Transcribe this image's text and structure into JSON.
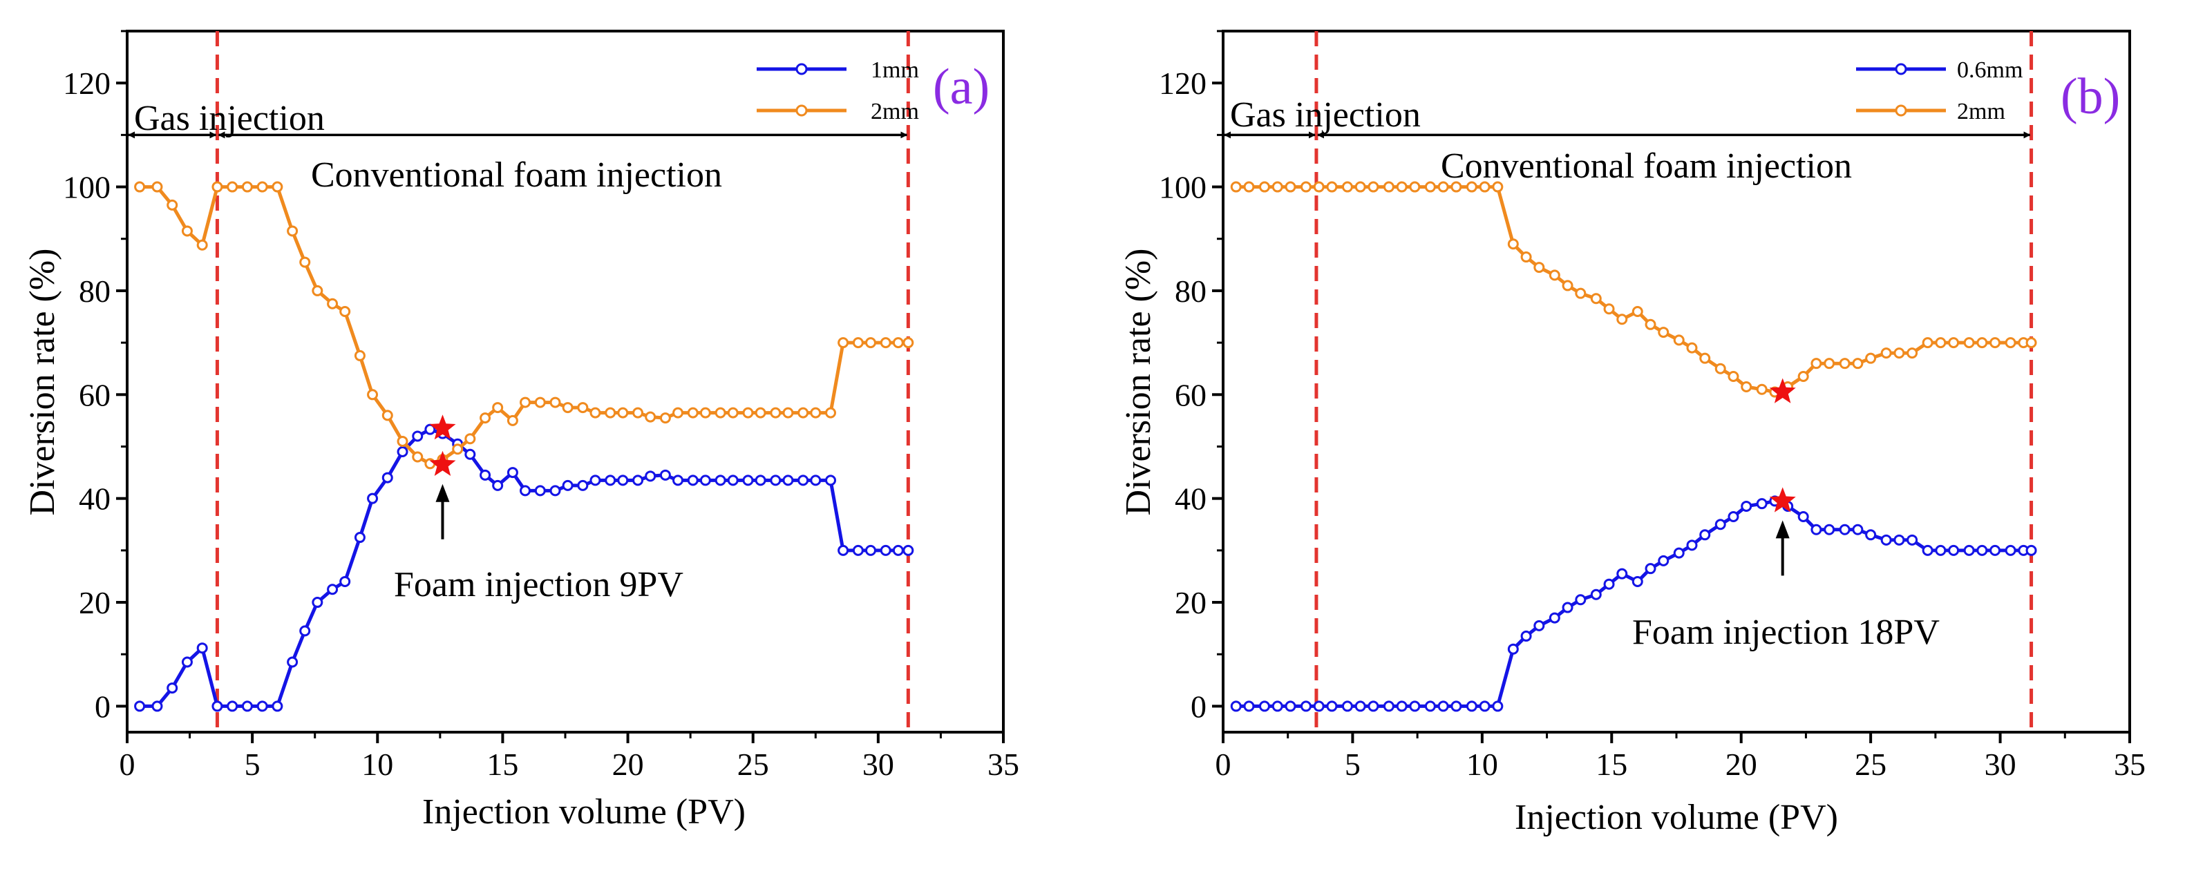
{
  "colors": {
    "series_a": "#1414e6",
    "series_b": "#f08a1e",
    "divider": "#e3342f",
    "panel_label": "#8a2be2",
    "star": "#ee1111"
  },
  "chart_data": [
    {
      "type": "line",
      "panel_label": "(a)",
      "xlabel": "Injection volume (PV)",
      "ylabel": "Diversion rate (%)",
      "xlim": [
        0,
        35
      ],
      "ylim": [
        -5,
        130
      ],
      "xticks": [
        "0",
        "5",
        "10",
        "15",
        "20",
        "25",
        "30",
        "35"
      ],
      "yticks": [
        "0",
        "20",
        "40",
        "60",
        "80",
        "100",
        "120"
      ],
      "vlines": [
        3.6,
        31.2
      ],
      "annotations": {
        "gas": "Gas injection",
        "conventional": "Conventional foam injection",
        "foam": "Foam injection 9PV"
      },
      "gas_arrow_x": [
        0,
        3.6
      ],
      "conv_arrow_x": [
        3.6,
        31.2
      ],
      "arrow_y": 110,
      "pointer_x": 12.6,
      "stars": [
        {
          "x": 12.6,
          "y": 53.5
        },
        {
          "x": 12.6,
          "y": 46.5
        }
      ],
      "series": [
        {
          "name": "1mm",
          "x": [
            0.5,
            1.2,
            1.8,
            2.4,
            3.0,
            3.6,
            4.2,
            4.8,
            5.4,
            6.0,
            6.6,
            7.1,
            7.6,
            8.2,
            8.7,
            9.3,
            9.8,
            10.4,
            11.0,
            11.6,
            12.1,
            12.6,
            13.2,
            13.7,
            14.3,
            14.8,
            15.4,
            15.9,
            16.5,
            17.1,
            17.6,
            18.2,
            18.7,
            19.3,
            19.8,
            20.4,
            20.9,
            21.5,
            22.0,
            22.6,
            23.1,
            23.7,
            24.2,
            24.8,
            25.3,
            25.9,
            26.4,
            27.0,
            27.5,
            28.1,
            28.6,
            29.2,
            29.7,
            30.3,
            30.8,
            31.2
          ],
          "values": [
            0,
            0,
            3.5,
            8.5,
            11.2,
            0,
            0,
            0,
            0,
            0,
            8.5,
            14.5,
            20,
            22.5,
            24,
            32.5,
            40,
            44,
            49,
            52,
            53.3,
            52.5,
            50.5,
            48.5,
            44.5,
            42.5,
            45,
            41.5,
            41.5,
            41.5,
            42.5,
            42.5,
            43.5,
            43.5,
            43.5,
            43.5,
            44.3,
            44.5,
            43.5,
            43.5,
            43.5,
            43.5,
            43.5,
            43.5,
            43.5,
            43.5,
            43.5,
            43.5,
            43.5,
            43.5,
            30,
            30,
            30,
            30,
            30,
            30
          ]
        },
        {
          "name": "2mm",
          "x": [
            0.5,
            1.2,
            1.8,
            2.4,
            3.0,
            3.6,
            4.2,
            4.8,
            5.4,
            6.0,
            6.6,
            7.1,
            7.6,
            8.2,
            8.7,
            9.3,
            9.8,
            10.4,
            11.0,
            11.6,
            12.1,
            12.6,
            13.2,
            13.7,
            14.3,
            14.8,
            15.4,
            15.9,
            16.5,
            17.1,
            17.6,
            18.2,
            18.7,
            19.3,
            19.8,
            20.4,
            20.9,
            21.5,
            22.0,
            22.6,
            23.1,
            23.7,
            24.2,
            24.8,
            25.3,
            25.9,
            26.4,
            27.0,
            27.5,
            28.1,
            28.6,
            29.2,
            29.7,
            30.3,
            30.8,
            31.2
          ],
          "values": [
            100,
            100,
            96.5,
            91.5,
            88.8,
            100,
            100,
            100,
            100,
            100,
            91.5,
            85.5,
            80,
            77.5,
            76,
            67.5,
            60,
            56,
            51,
            48,
            46.7,
            47.5,
            49.5,
            51.5,
            55.5,
            57.5,
            55,
            58.5,
            58.5,
            58.5,
            57.5,
            57.5,
            56.5,
            56.5,
            56.5,
            56.5,
            55.7,
            55.5,
            56.5,
            56.5,
            56.5,
            56.5,
            56.5,
            56.5,
            56.5,
            56.5,
            56.5,
            56.5,
            56.5,
            56.5,
            70,
            70,
            70,
            70,
            70,
            70
          ]
        }
      ]
    },
    {
      "type": "line",
      "panel_label": "(b)",
      "xlabel": "Injection volume (PV)",
      "ylabel": "Diversion rate (%)",
      "xlim": [
        0,
        35
      ],
      "ylim": [
        -5,
        130
      ],
      "xticks": [
        "0",
        "5",
        "10",
        "15",
        "20",
        "25",
        "30",
        "35"
      ],
      "yticks": [
        "0",
        "20",
        "40",
        "60",
        "80",
        "100",
        "120"
      ],
      "vlines": [
        3.6,
        31.2
      ],
      "annotations": {
        "gas": "Gas injection",
        "conventional": "Conventional foam injection",
        "foam": "Foam injection 18PV"
      },
      "gas_arrow_x": [
        0,
        3.6
      ],
      "conv_arrow_x": [
        3.6,
        31.2
      ],
      "arrow_y": 110,
      "pointer_x": 21.6,
      "stars": [
        {
          "x": 21.6,
          "y": 39.5
        },
        {
          "x": 21.6,
          "y": 60.5
        }
      ],
      "series": [
        {
          "name": "0.6mm",
          "x": [
            0.5,
            1.0,
            1.6,
            2.1,
            2.6,
            3.2,
            3.7,
            4.2,
            4.8,
            5.3,
            5.8,
            6.4,
            6.9,
            7.4,
            8.0,
            8.5,
            9.0,
            9.6,
            10.1,
            10.6,
            11.2,
            11.7,
            12.2,
            12.8,
            13.3,
            13.8,
            14.4,
            14.9,
            15.4,
            16.0,
            16.5,
            17.0,
            17.6,
            18.1,
            18.6,
            19.2,
            19.7,
            20.2,
            20.8,
            21.3,
            21.8,
            22.4,
            22.9,
            23.4,
            24.0,
            24.5,
            25.0,
            25.6,
            26.1,
            26.6,
            27.2,
            27.7,
            28.2,
            28.8,
            29.3,
            29.8,
            30.4,
            30.9,
            31.2
          ],
          "values": [
            0,
            0,
            0,
            0,
            0,
            0,
            0,
            0,
            0,
            0,
            0,
            0,
            0,
            0,
            0,
            0,
            0,
            0,
            0,
            0,
            11,
            13.5,
            15.5,
            17,
            19,
            20.5,
            21.5,
            23.5,
            25.5,
            24,
            26.5,
            28,
            29.5,
            31,
            33,
            35,
            36.5,
            38.5,
            39,
            39.5,
            38.5,
            36.5,
            34,
            34,
            34,
            34,
            33,
            32,
            32,
            32,
            30,
            30,
            30,
            30,
            30,
            30,
            30,
            30,
            30
          ]
        },
        {
          "name": "2mm",
          "x": [
            0.5,
            1.0,
            1.6,
            2.1,
            2.6,
            3.2,
            3.7,
            4.2,
            4.8,
            5.3,
            5.8,
            6.4,
            6.9,
            7.4,
            8.0,
            8.5,
            9.0,
            9.6,
            10.1,
            10.6,
            11.2,
            11.7,
            12.2,
            12.8,
            13.3,
            13.8,
            14.4,
            14.9,
            15.4,
            16.0,
            16.5,
            17.0,
            17.6,
            18.1,
            18.6,
            19.2,
            19.7,
            20.2,
            20.8,
            21.3,
            21.8,
            22.4,
            22.9,
            23.4,
            24.0,
            24.5,
            25.0,
            25.6,
            26.1,
            26.6,
            27.2,
            27.7,
            28.2,
            28.8,
            29.3,
            29.8,
            30.4,
            30.9,
            31.2
          ],
          "values": [
            100,
            100,
            100,
            100,
            100,
            100,
            100,
            100,
            100,
            100,
            100,
            100,
            100,
            100,
            100,
            100,
            100,
            100,
            100,
            100,
            89,
            86.5,
            84.5,
            83,
            81,
            79.5,
            78.5,
            76.5,
            74.5,
            76,
            73.5,
            72,
            70.5,
            69,
            67,
            65,
            63.5,
            61.5,
            61,
            60.5,
            61.5,
            63.5,
            66,
            66,
            66,
            66,
            67,
            68,
            68,
            68,
            70,
            70,
            70,
            70,
            70,
            70,
            70,
            70,
            70
          ]
        }
      ]
    }
  ]
}
